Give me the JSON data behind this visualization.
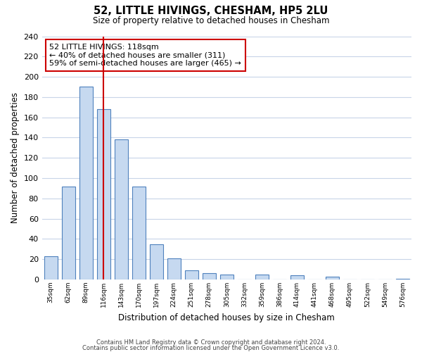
{
  "title": "52, LITTLE HIVINGS, CHESHAM, HP5 2LU",
  "subtitle": "Size of property relative to detached houses in Chesham",
  "xlabel": "Distribution of detached houses by size in Chesham",
  "ylabel": "Number of detached properties",
  "bar_labels": [
    "35sqm",
    "62sqm",
    "89sqm",
    "116sqm",
    "143sqm",
    "170sqm",
    "197sqm",
    "224sqm",
    "251sqm",
    "278sqm",
    "305sqm",
    "332sqm",
    "359sqm",
    "386sqm",
    "414sqm",
    "441sqm",
    "468sqm",
    "495sqm",
    "522sqm",
    "549sqm",
    "576sqm"
  ],
  "bar_heights": [
    23,
    92,
    190,
    168,
    138,
    92,
    35,
    21,
    9,
    6,
    5,
    0,
    5,
    0,
    4,
    0,
    3,
    0,
    0,
    0,
    1
  ],
  "bar_color": "#c6d9f0",
  "bar_edge_color": "#4f81bd",
  "vline_color": "#cc0000",
  "annotation_title": "52 LITTLE HIVINGS: 118sqm",
  "annotation_line1": "← 40% of detached houses are smaller (311)",
  "annotation_line2": "59% of semi-detached houses are larger (465) →",
  "annotation_box_color": "#cc0000",
  "ylim": [
    0,
    240
  ],
  "ytick_step": 20,
  "footer1": "Contains HM Land Registry data © Crown copyright and database right 2024.",
  "footer2": "Contains public sector information licensed under the Open Government Licence v3.0.",
  "bg_color": "#ffffff",
  "grid_color": "#c8d4e8"
}
